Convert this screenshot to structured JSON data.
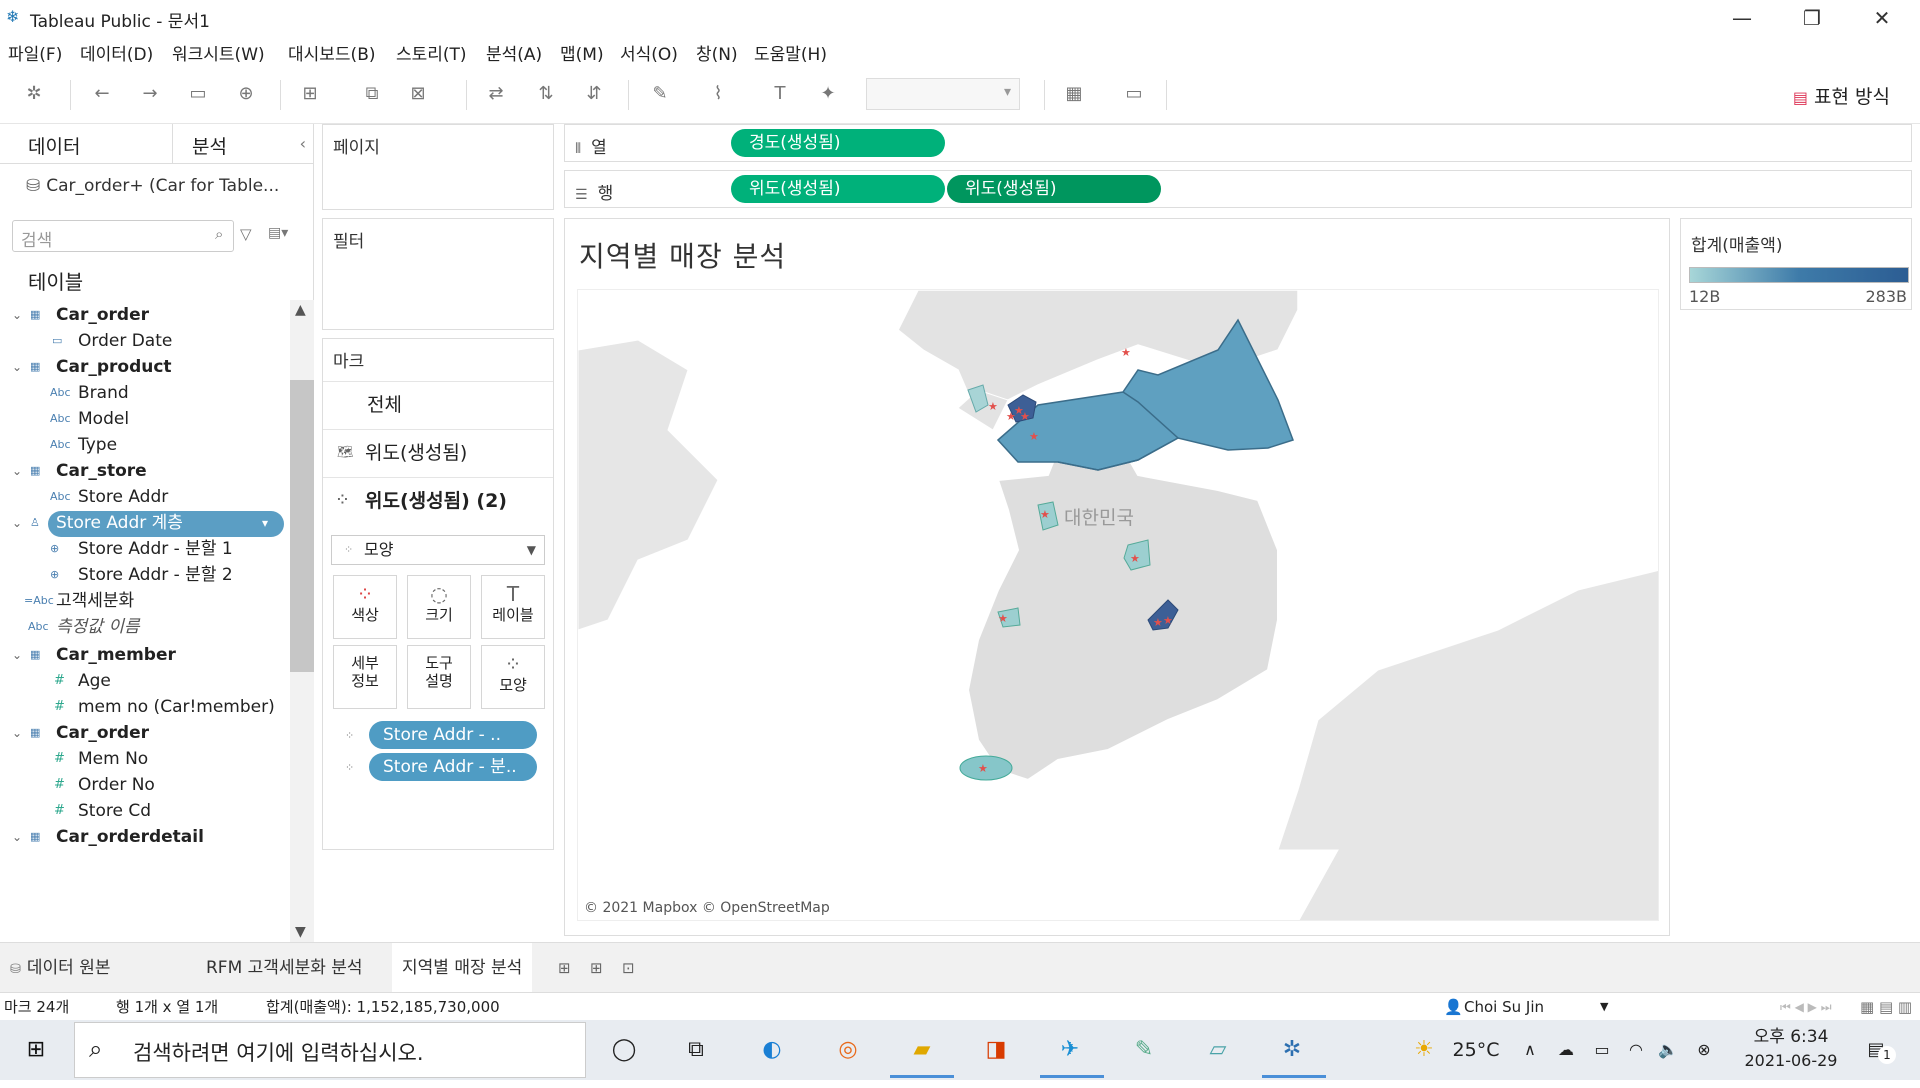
{
  "window": {
    "title": "Tableau Public - 문서1"
  },
  "menu": [
    "파일(F)",
    "데이터(D)",
    "워크시트(W)",
    "대시보드(B)",
    "스토리(T)",
    "분석(A)",
    "맵(M)",
    "서식(O)",
    "창(N)",
    "도움말(H)"
  ],
  "toolbar": {
    "show_me_label": "표현 방식"
  },
  "data_pane": {
    "tab_data": "데이터",
    "tab_analysis": "분석",
    "datasource": "Car_order+ (Car for Table...",
    "search_placeholder": "검색",
    "heading": "테이블",
    "items": [
      {
        "label": "Car_order",
        "kind": "table"
      },
      {
        "label": "Order Date",
        "kind": "date"
      },
      {
        "label": "Car_product",
        "kind": "table"
      },
      {
        "label": "Brand",
        "kind": "abc"
      },
      {
        "label": "Model",
        "kind": "abc"
      },
      {
        "label": "Type",
        "kind": "abc"
      },
      {
        "label": "Car_store",
        "kind": "table"
      },
      {
        "label": "Store Addr",
        "kind": "abc"
      },
      {
        "label": "Store Addr 계층",
        "kind": "hierarchy"
      },
      {
        "label": "Store Addr - 분할 1",
        "kind": "geo"
      },
      {
        "label": "Store Addr - 분할 2",
        "kind": "geo"
      },
      {
        "label": "고객세분화",
        "kind": "calc"
      },
      {
        "label": "측정값 이름",
        "kind": "abc"
      },
      {
        "label": "Car_member",
        "kind": "table"
      },
      {
        "label": "Age",
        "kind": "num"
      },
      {
        "label": "mem no (Car!member)",
        "kind": "num"
      },
      {
        "label": "Car_order",
        "kind": "table"
      },
      {
        "label": "Mem No",
        "kind": "num"
      },
      {
        "label": "Order No",
        "kind": "num"
      },
      {
        "label": "Store Cd",
        "kind": "num"
      },
      {
        "label": "Car_orderdetail",
        "kind": "table"
      }
    ]
  },
  "cards": {
    "pages": "페이지",
    "filters": "필터",
    "marks": "마크",
    "marks_all": "전체",
    "marks_lat1": "위도(생성됨)",
    "marks_lat2": "위도(생성됨) (2)",
    "mark_type": "모양",
    "btn_color": "색상",
    "btn_size": "크기",
    "btn_label": "레이블",
    "btn_detail": "세부\n정보",
    "btn_tooltip": "도구\n설명",
    "btn_shape": "모양",
    "pill_1": "Store Addr - ..",
    "pill_2": "Store Addr - 분.."
  },
  "shelves": {
    "columns_label": "열",
    "rows_label": "행",
    "columns_pill": "경도(생성됨)",
    "rows_pill_1": "위도(생성됨)",
    "rows_pill_2": "위도(생성됨)"
  },
  "viz": {
    "title": "지역별 매장 분석",
    "map_label": "대한민국",
    "attribution": "© 2021 Mapbox © OpenStreetMap"
  },
  "legend": {
    "title": "합계(매출액)",
    "min": "12B",
    "max": "283B"
  },
  "sheet_tabs": [
    "데이터 원본",
    "RFM 고객세분화 분석",
    "지역별 매장 분석"
  ],
  "status": {
    "marks": "마크 24개",
    "rows_cols": "행 1개 x 열 1개",
    "sum": "합계(매출액): 1,152,185,730,000",
    "user": "Choi Su Jin"
  },
  "taskbar": {
    "search_placeholder": "검색하려면 여기에 입력하십시오.",
    "temp": "25°C",
    "time": "오후 6:34",
    "date": "2021-06-29",
    "notif_count": "1"
  },
  "colors": {
    "accent_green": "#00b17a",
    "pill_blue": "#4f9cc4",
    "map_high": "#2c5d93",
    "map_low": "#a7d6d8"
  }
}
